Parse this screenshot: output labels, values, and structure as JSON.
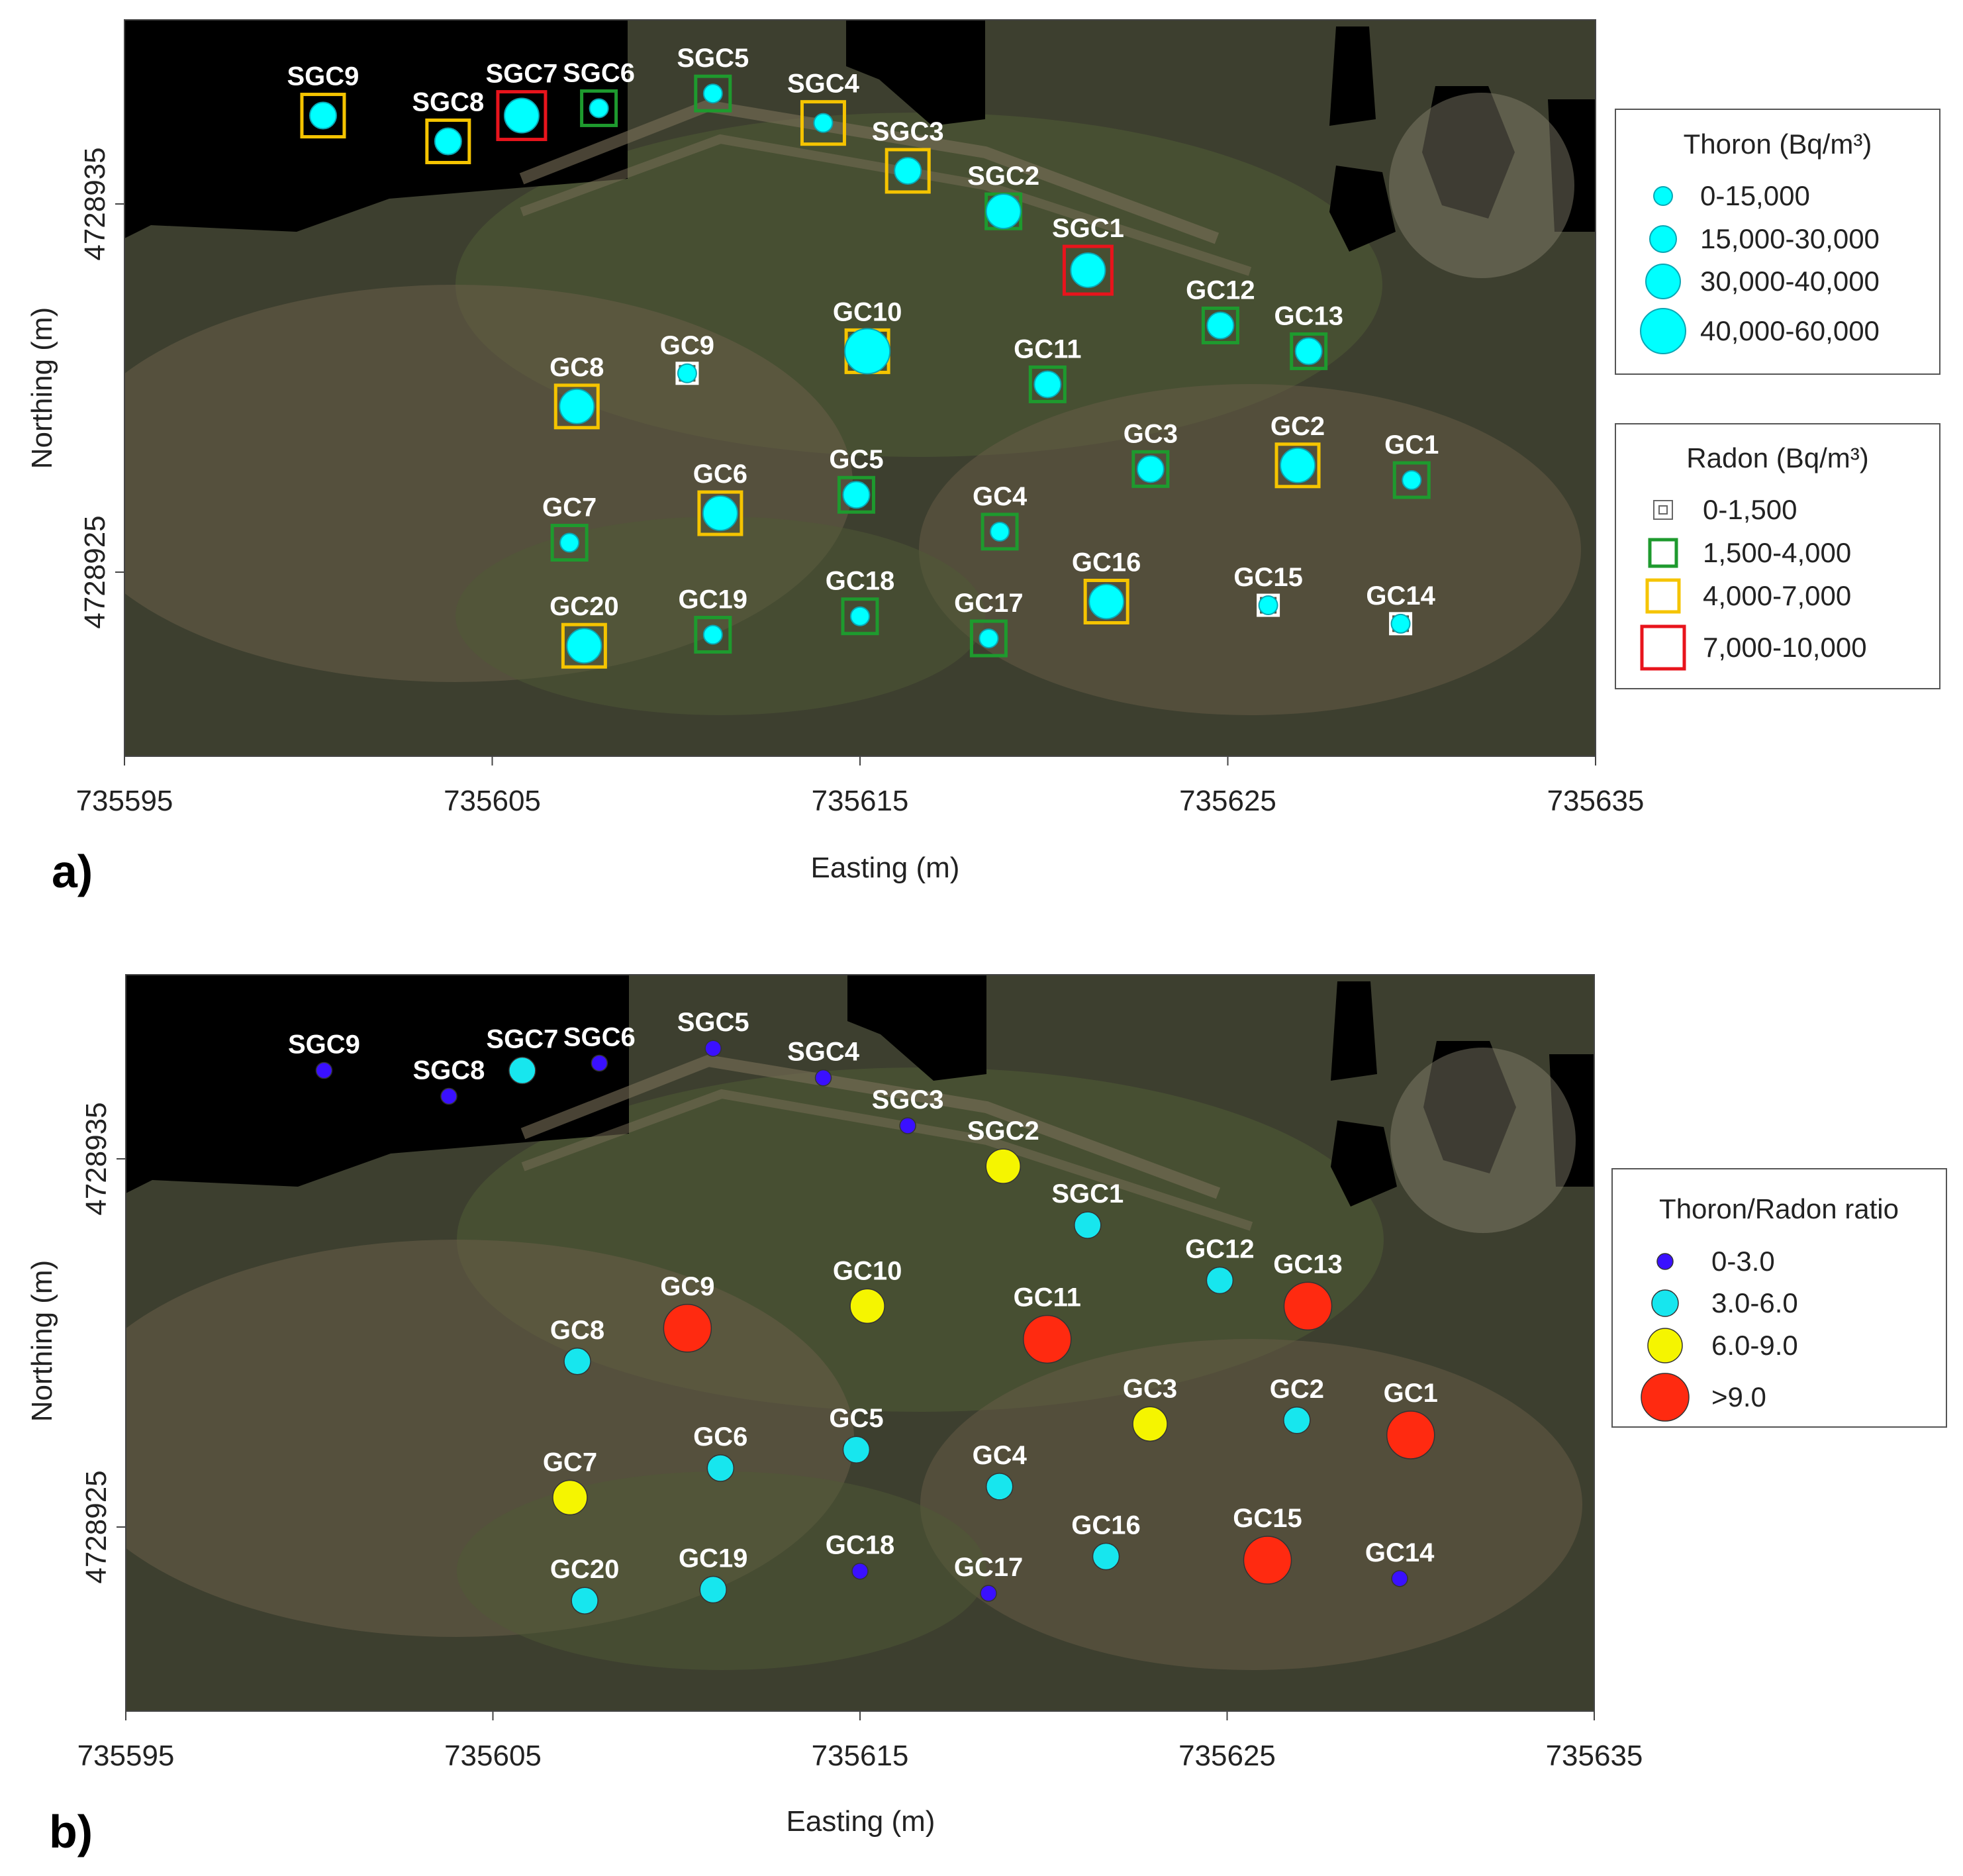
{
  "panel_a": {
    "letter": "a)",
    "xlabel": "Easting (m)",
    "ylabel": "Northing (m)",
    "x_ticks": [
      "735595",
      "735605",
      "735615",
      "735625",
      "735635"
    ],
    "y_ticks": [
      "4728935",
      "4728925"
    ],
    "thoron_legend": {
      "title": "Thoron (Bq/m³)",
      "items": [
        "0-15,000",
        "15,000-30,000",
        "30,000-40,000",
        "40,000-60,000"
      ]
    },
    "radon_legend": {
      "title": "Radon (Bq/m³)",
      "items": [
        "0-1,500",
        "1,500-4,000",
        "4,000-7,000",
        "7,000-10,000"
      ]
    }
  },
  "panel_b": {
    "letter": "b)",
    "xlabel": "Easting (m)",
    "ylabel": "Northing (m)",
    "x_ticks": [
      "735595",
      "735605",
      "735615",
      "735625",
      "735635"
    ],
    "y_ticks": [
      "4728935",
      "4728925"
    ],
    "ratio_legend": {
      "title": "Thoron/Radon ratio",
      "items": [
        "0-3.0",
        "3.0-6.0",
        "6.0-9.0",
        ">9.0"
      ]
    }
  },
  "colors": {
    "thoron": "#00ffff",
    "radon_classes": [
      "#ffffff",
      "#1e9a2e",
      "#f5c400",
      "#e8141c"
    ],
    "ratio_classes": [
      "#3a10ff",
      "#17e6ee",
      "#f5f500",
      "#ff2a10"
    ]
  },
  "chart_data": {
    "type": "scatter",
    "xlim": [
      735595,
      735635
    ],
    "ylim": [
      4728920,
      4728940
    ],
    "stations": [
      {
        "name": "SGC9",
        "easting": 735600.4,
        "northing": 4728937.4,
        "thoron_class": 1,
        "radon_class": 2,
        "ratio_class": 0
      },
      {
        "name": "SGC8",
        "easting": 735603.8,
        "northing": 4728936.7,
        "thoron_class": 1,
        "radon_class": 2,
        "ratio_class": 0
      },
      {
        "name": "SGC7",
        "easting": 735605.8,
        "northing": 4728937.4,
        "thoron_class": 2,
        "radon_class": 3,
        "ratio_class": 1
      },
      {
        "name": "SGC6",
        "easting": 735607.9,
        "northing": 4728937.6,
        "thoron_class": 0,
        "radon_class": 1,
        "ratio_class": 0
      },
      {
        "name": "SGC5",
        "easting": 735611.0,
        "northing": 4728938.0,
        "thoron_class": 0,
        "radon_class": 1,
        "ratio_class": 0
      },
      {
        "name": "SGC4",
        "easting": 735614.0,
        "northing": 4728937.2,
        "thoron_class": 0,
        "radon_class": 2,
        "ratio_class": 0
      },
      {
        "name": "SGC3",
        "easting": 735616.3,
        "northing": 4728935.9,
        "thoron_class": 1,
        "radon_class": 2,
        "ratio_class": 0
      },
      {
        "name": "SGC2",
        "easting": 735618.9,
        "northing": 4728934.8,
        "thoron_class": 2,
        "radon_class": 1,
        "ratio_class": 2
      },
      {
        "name": "SGC1",
        "easting": 735621.2,
        "northing": 4728933.2,
        "thoron_class": 2,
        "radon_class": 3,
        "ratio_class": 1
      },
      {
        "name": "GC12",
        "easting": 735624.8,
        "northing": 4728931.7,
        "thoron_class": 1,
        "radon_class": 1,
        "ratio_class": 1
      },
      {
        "name": "GC13",
        "easting": 735627.2,
        "northing": 4728931.0,
        "thoron_class": 1,
        "radon_class": 1,
        "ratio_class": 3
      },
      {
        "name": "GC10",
        "easting": 735615.2,
        "northing": 4728931.0,
        "thoron_class": 3,
        "radon_class": 2,
        "ratio_class": 2
      },
      {
        "name": "GC11",
        "easting": 735620.1,
        "northing": 4728930.1,
        "thoron_class": 1,
        "radon_class": 1,
        "ratio_class": 3
      },
      {
        "name": "GC9",
        "easting": 735610.3,
        "northing": 4728930.4,
        "thoron_class": 0,
        "radon_class": 0,
        "ratio_class": 3
      },
      {
        "name": "GC8",
        "easting": 735607.3,
        "northing": 4728929.5,
        "thoron_class": 2,
        "radon_class": 2,
        "ratio_class": 1
      },
      {
        "name": "GC3",
        "easting": 735622.9,
        "northing": 4728927.8,
        "thoron_class": 1,
        "radon_class": 1,
        "ratio_class": 2
      },
      {
        "name": "GC2",
        "easting": 735626.9,
        "northing": 4728927.9,
        "thoron_class": 2,
        "radon_class": 2,
        "ratio_class": 1
      },
      {
        "name": "GC1",
        "easting": 735630.0,
        "northing": 4728927.5,
        "thoron_class": 0,
        "radon_class": 1,
        "ratio_class": 3
      },
      {
        "name": "GC5",
        "easting": 735614.9,
        "northing": 4728927.1,
        "thoron_class": 1,
        "radon_class": 1,
        "ratio_class": 1
      },
      {
        "name": "GC6",
        "easting": 735611.2,
        "northing": 4728926.6,
        "thoron_class": 2,
        "radon_class": 2,
        "ratio_class": 1
      },
      {
        "name": "GC4",
        "easting": 735618.8,
        "northing": 4728926.1,
        "thoron_class": 0,
        "radon_class": 1,
        "ratio_class": 1
      },
      {
        "name": "GC7",
        "easting": 735607.1,
        "northing": 4728925.8,
        "thoron_class": 0,
        "radon_class": 1,
        "ratio_class": 2
      },
      {
        "name": "GC16",
        "easting": 735621.7,
        "northing": 4728924.2,
        "thoron_class": 2,
        "radon_class": 2,
        "ratio_class": 1
      },
      {
        "name": "GC15",
        "easting": 735626.1,
        "northing": 4728924.1,
        "thoron_class": 0,
        "radon_class": 0,
        "ratio_class": 3
      },
      {
        "name": "GC14",
        "easting": 735629.7,
        "northing": 4728923.6,
        "thoron_class": 0,
        "radon_class": 0,
        "ratio_class": 0
      },
      {
        "name": "GC18",
        "easting": 735615.0,
        "northing": 4728923.8,
        "thoron_class": 0,
        "radon_class": 1,
        "ratio_class": 0
      },
      {
        "name": "GC17",
        "easting": 735618.5,
        "northing": 4728923.2,
        "thoron_class": 0,
        "radon_class": 1,
        "ratio_class": 0
      },
      {
        "name": "GC19",
        "easting": 735611.0,
        "northing": 4728923.3,
        "thoron_class": 0,
        "radon_class": 1,
        "ratio_class": 1
      },
      {
        "name": "GC20",
        "easting": 735607.5,
        "northing": 4728923.0,
        "thoron_class": 2,
        "radon_class": 2,
        "ratio_class": 1
      }
    ]
  }
}
